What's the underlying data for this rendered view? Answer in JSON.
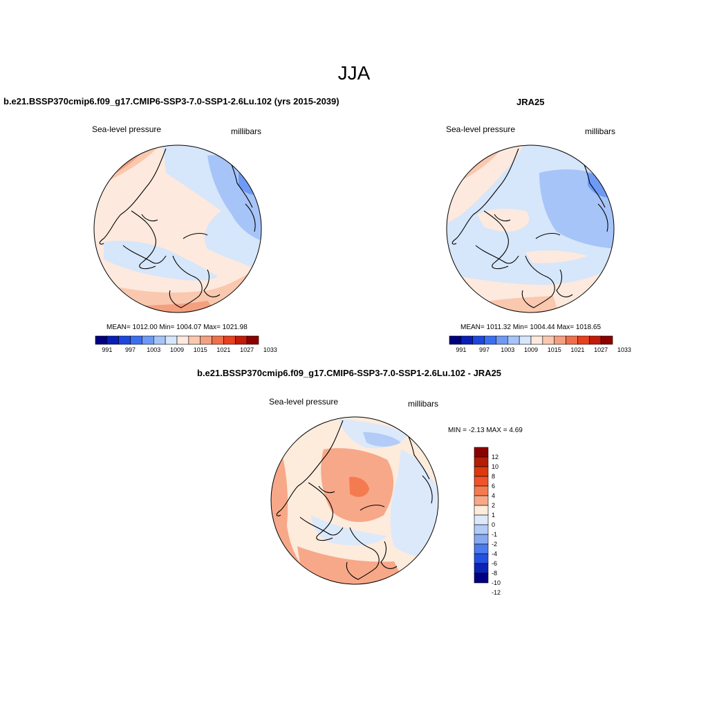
{
  "title": "JJA",
  "colors": {
    "abs_scale": [
      "#00007f",
      "#0a1fb5",
      "#1d48e0",
      "#3a6ff2",
      "#6e9af5",
      "#a6c4f7",
      "#d6e6fb",
      "#fde9dd",
      "#f9c8ae",
      "#f4a080",
      "#f06f4b",
      "#e8401e",
      "#c41a08",
      "#8b0000"
    ],
    "diff_scale": [
      "#8b0000",
      "#b41e05",
      "#dc3a0e",
      "#f0532a",
      "#f47a4f",
      "#f7a889",
      "#fdebdc",
      "#dce9fb",
      "#b2ccf7",
      "#86a9f1",
      "#4c7bee",
      "#2450e1",
      "#0b22b8",
      "#000080"
    ],
    "ocean_pale_blue": "#d6e6fb",
    "land_line": "#000000"
  },
  "panels": [
    {
      "title": "b.e21.BSSP370cmip6.f09_g17.CMIP6-SSP3-7.0-SSP1-2.6Lu.102 (yrs 2015-2039)",
      "left_label": "Sea-level pressure",
      "right_label": "millibars",
      "stats": "MEAN= 1012.00  Min= 1004.07  Max= 1021.98",
      "colorbar_ticks": [
        "991",
        "997",
        "1003",
        "1009",
        "1015",
        "1021",
        "1027",
        "1033"
      ]
    },
    {
      "title": "JRA25",
      "left_label": "Sea-level pressure",
      "right_label": "millibars",
      "stats": "MEAN= 1011.32  Min= 1004.44  Max= 1018.65",
      "colorbar_ticks": [
        "991",
        "997",
        "1003",
        "1009",
        "1015",
        "1021",
        "1027",
        "1033"
      ]
    },
    {
      "title": "b.e21.BSSP370cmip6.f09_g17.CMIP6-SSP3-7.0-SSP1-2.6Lu.102 - JRA25",
      "left_label": "Sea-level pressure",
      "right_label": "millibars",
      "stats": "MIN =  -2.13 MAX =   4.69",
      "colorbar_ticks": [
        "12",
        "10",
        "8",
        "6",
        "4",
        "2",
        "1",
        "0",
        "-1",
        "-2",
        "-4",
        "-6",
        "-8",
        "-10",
        "-12"
      ]
    }
  ]
}
